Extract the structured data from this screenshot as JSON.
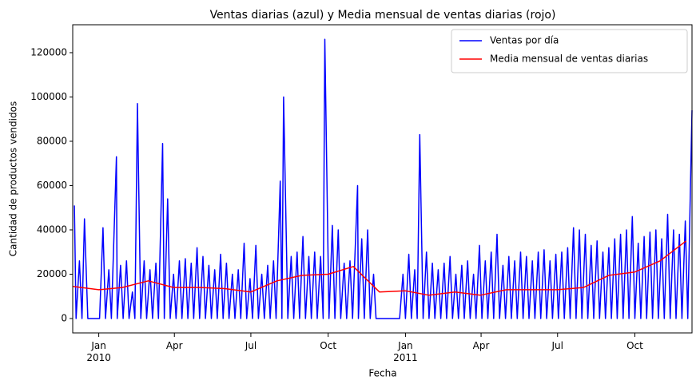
{
  "chart_data": {
    "type": "line",
    "title": "Ventas diarias (azul) y Media mensual de ventas diarias (rojo)",
    "xlabel": "Fecha",
    "ylabel": "Cantidad de productos vendidos",
    "xlim": [
      0,
      737
    ],
    "ylim": [
      -6500,
      132600
    ],
    "xticks": [
      {
        "value": 31,
        "label": "Jan\n2010"
      },
      {
        "value": 121,
        "label": "Apr"
      },
      {
        "value": 212,
        "label": "Jul"
      },
      {
        "value": 304,
        "label": "Oct"
      },
      {
        "value": 396,
        "label": "Jan\n2011"
      },
      {
        "value": 486,
        "label": "Apr"
      },
      {
        "value": 577,
        "label": "Jul"
      },
      {
        "value": 669,
        "label": "Oct"
      }
    ],
    "yticks": [
      0,
      20000,
      40000,
      60000,
      80000,
      100000,
      120000
    ],
    "legend": "upper right",
    "series": [
      {
        "name": "Ventas por día",
        "color": "#0000ff",
        "x": [
          2,
          4,
          8,
          11,
          14,
          18,
          22,
          25,
          29,
          32,
          36,
          39,
          43,
          46,
          52,
          53,
          57,
          60,
          64,
          67,
          71,
          74,
          77,
          81,
          85,
          88,
          92,
          95,
          99,
          102,
          107,
          109,
          113,
          116,
          120,
          123,
          127,
          130,
          134,
          137,
          141,
          144,
          148,
          151,
          155,
          158,
          162,
          165,
          169,
          172,
          176,
          179,
          183,
          186,
          190,
          193,
          197,
          200,
          204,
          207,
          211,
          214,
          218,
          221,
          225,
          228,
          232,
          235,
          239,
          242,
          247,
          249,
          251,
          256,
          260,
          263,
          267,
          270,
          274,
          277,
          281,
          284,
          288,
          291,
          295,
          298,
          300,
          305,
          309,
          312,
          316,
          319,
          323,
          326,
          330,
          333,
          339,
          340,
          344,
          347,
          351,
          354,
          358,
          361,
          365,
          368,
          372,
          375,
          379,
          382,
          386,
          389,
          393,
          396,
          400,
          403,
          407,
          410,
          413,
          417,
          421,
          424,
          428,
          431,
          435,
          438,
          442,
          445,
          449,
          452,
          456,
          459,
          463,
          466,
          470,
          473,
          477,
          480,
          484,
          487,
          491,
          494,
          498,
          501,
          505,
          508,
          512,
          515,
          519,
          522,
          526,
          529,
          533,
          536,
          540,
          543,
          547,
          550,
          554,
          557,
          561,
          564,
          568,
          571,
          575,
          578,
          582,
          585,
          589,
          592,
          596,
          599,
          603,
          606,
          610,
          613,
          617,
          620,
          624,
          627,
          631,
          634,
          638,
          641,
          645,
          648,
          652,
          655,
          659,
          662,
          666,
          669,
          673,
          676,
          680,
          683,
          687,
          690,
          694,
          697,
          701,
          704,
          708,
          711,
          715,
          718,
          722,
          725,
          729,
          732,
          737
        ],
        "values": [
          51000,
          0,
          26000,
          0,
          45000,
          0,
          0,
          0,
          0,
          0,
          41000,
          0,
          22000,
          0,
          73000,
          0,
          24000,
          0,
          26000,
          0,
          12000,
          0,
          97000,
          0,
          26000,
          0,
          22000,
          0,
          25000,
          0,
          79000,
          0,
          54000,
          0,
          20000,
          0,
          26000,
          0,
          27000,
          0,
          25000,
          0,
          32000,
          0,
          28000,
          0,
          24000,
          0,
          22000,
          0,
          29000,
          0,
          25000,
          0,
          20000,
          0,
          22000,
          0,
          34000,
          0,
          18000,
          0,
          33000,
          0,
          20000,
          0,
          24000,
          0,
          26000,
          0,
          62000,
          0,
          100000,
          0,
          28000,
          0,
          30000,
          0,
          37000,
          0,
          28000,
          0,
          30000,
          0,
          28000,
          0,
          126000,
          0,
          42000,
          0,
          40000,
          0,
          25000,
          0,
          26000,
          0,
          60000,
          0,
          36000,
          0,
          40000,
          0,
          20000,
          0,
          0,
          0,
          0,
          0,
          0,
          0,
          0,
          0,
          20000,
          0,
          29000,
          0,
          22000,
          0,
          83000,
          0,
          30000,
          0,
          25000,
          0,
          22000,
          0,
          25000,
          0,
          28000,
          0,
          20000,
          0,
          24000,
          0,
          26000,
          0,
          20000,
          0,
          33000,
          0,
          26000,
          0,
          30000,
          0,
          38000,
          0,
          24000,
          0,
          28000,
          0,
          26000,
          0,
          30000,
          0,
          28000,
          0,
          26000,
          0,
          30000,
          0,
          31000,
          0,
          26000,
          0,
          29000,
          0,
          30000,
          0,
          32000,
          0,
          41000,
          0,
          40000,
          0,
          38000,
          0,
          33000,
          0,
          35000,
          0,
          30000,
          0,
          32000,
          0,
          36000,
          0,
          38000,
          0,
          40000,
          0,
          46000,
          0,
          34000,
          0,
          37000,
          0,
          39000,
          0,
          40000,
          0,
          36000,
          0,
          47000,
          0,
          40000,
          0,
          38000,
          0,
          44000,
          0,
          94000
        ]
      },
      {
        "name": "Media mensual de ventas diarias",
        "color": "#ff0000",
        "x": [
          0,
          31,
          59,
          90,
          120,
          151,
          181,
          212,
          243,
          273,
          304,
          334,
          365,
          396,
          424,
          455,
          485,
          516,
          546,
          577,
          608,
          638,
          669,
          699,
          730
        ],
        "values": [
          14500,
          13000,
          14000,
          17000,
          14000,
          14000,
          13500,
          12000,
          17000,
          19500,
          20000,
          23500,
          12000,
          12500,
          10500,
          12000,
          10500,
          13000,
          13000,
          13000,
          14000,
          19500,
          21000,
          26000,
          35000
        ]
      }
    ]
  }
}
